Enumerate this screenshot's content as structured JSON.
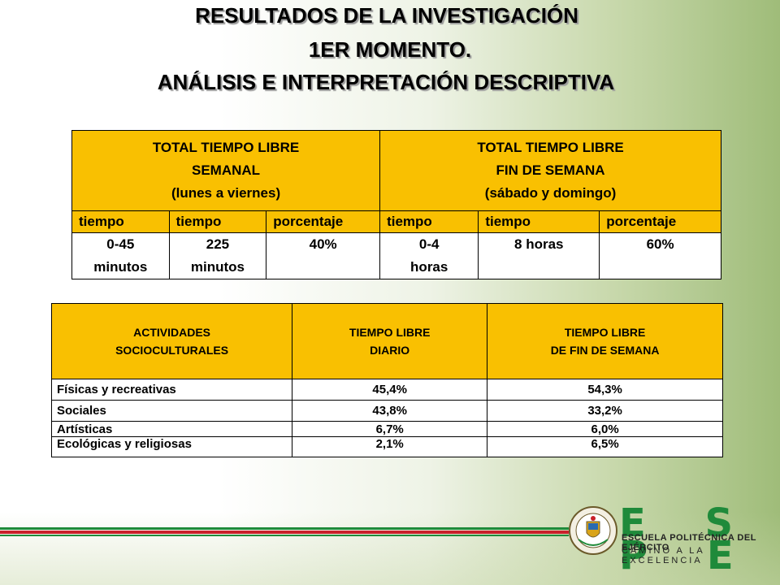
{
  "title": {
    "line1": "RESULTADOS DE LA INVESTIGACIÓN",
    "line2": "1ER MOMENTO.",
    "line3": "ANÁLISIS E INTERPRETACIÓN DESCRIPTIVA"
  },
  "table1": {
    "header_left": [
      "TOTAL TIEMPO LIBRE",
      "SEMANAL",
      "(lunes a viernes)"
    ],
    "header_right": [
      "TOTAL TIEMPO LIBRE",
      "FIN DE SEMANA",
      "(sábado y domingo)"
    ],
    "subheaders": [
      "tiempo",
      "tiempo",
      "porcentaje",
      "tiempo",
      "tiempo",
      "porcentaje"
    ],
    "row": [
      [
        "0-45",
        "minutos"
      ],
      [
        "225",
        "minutos"
      ],
      [
        "40%"
      ],
      [
        "0-4",
        "horas"
      ],
      [
        "8 horas"
      ],
      [
        "60%"
      ]
    ]
  },
  "table2": {
    "headers": [
      [
        "ACTIVIDADES",
        "SOCIOCULTURALES"
      ],
      [
        "TIEMPO LIBRE",
        "DIARIO"
      ],
      [
        "TIEMPO LIBRE",
        "DE FIN DE SEMANA"
      ]
    ],
    "rows": [
      [
        "Físicas y recreativas",
        "45,4%",
        "54,3%"
      ],
      [
        "Sociales",
        "43,8%",
        "33,2%"
      ],
      [
        "Artísticas",
        "6,7%",
        "6,0%"
      ],
      [
        "Ecológicas y religiosas",
        "2,1%",
        "6,5%"
      ]
    ]
  },
  "branding": {
    "logo_text": "E S P E",
    "subtitle": "ESCUELA POLITÉCNICA DEL EJÉRCITO",
    "motto": "CAMINO A LA EXCELENCIA",
    "seal_text": "ESCUELA POLITÉCNICA DEL EJÉRCITO · ECUADOR"
  },
  "colors": {
    "header_fill": "#f9c001",
    "stripe_red": "#c8202a",
    "stripe_green": "#1f8a3a",
    "brand_green": "#1f8a3a"
  }
}
